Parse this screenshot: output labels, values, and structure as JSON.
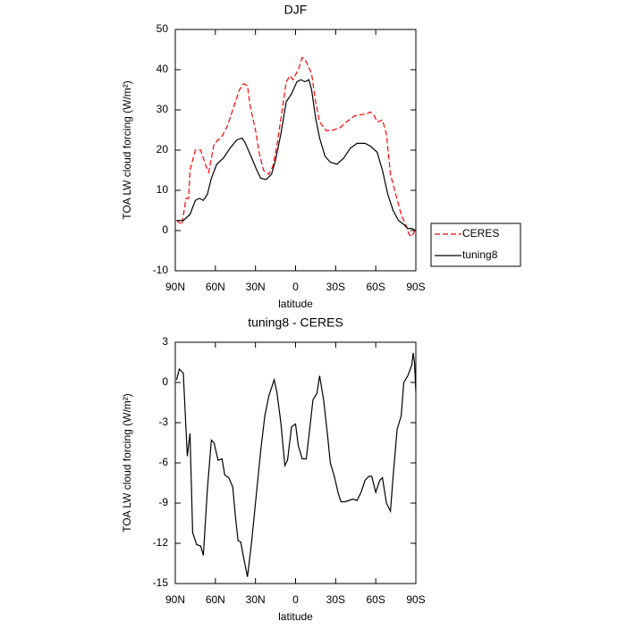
{
  "chart_data": [
    {
      "type": "line",
      "title": "DJF",
      "xlabel": "latitude",
      "ylabel": "TOA LW cloud forcing (W/m²)",
      "xlim": [
        90,
        -90
      ],
      "ylim": [
        -10,
        50
      ],
      "xticks": [
        {
          "value": 90,
          "label": "90N"
        },
        {
          "value": 60,
          "label": "60N"
        },
        {
          "value": 30,
          "label": "30N"
        },
        0,
        {
          "value": -30,
          "label": "30S"
        },
        {
          "value": -60,
          "label": "60S"
        },
        {
          "value": -90,
          "label": "90S"
        }
      ],
      "yticks": [
        -10,
        0,
        10,
        20,
        30,
        40,
        50
      ],
      "legend": "outside right",
      "series": [
        {
          "name": "CERES",
          "color": "#ff0000",
          "dash": "dashed",
          "x": [
            89,
            85,
            82,
            80,
            79,
            75,
            71,
            67,
            65,
            61,
            55,
            51,
            46,
            42,
            39,
            36,
            34,
            30,
            27,
            24,
            20,
            17,
            14,
            10,
            7,
            4,
            2,
            -2,
            -5,
            -8,
            -12,
            -15,
            -18,
            -23,
            -28,
            -33,
            -38,
            -44,
            -49,
            -53,
            -56,
            -59,
            -61,
            -65,
            -68,
            -71,
            -75,
            -79,
            -83,
            -85,
            -87,
            -90
          ],
          "values": [
            2.5,
            1.5,
            8,
            8,
            15,
            20,
            20,
            16,
            14.5,
            21.5,
            23.5,
            26,
            31,
            35,
            36.5,
            36,
            31,
            25,
            19,
            15,
            14,
            16,
            21,
            30,
            37,
            38.5,
            37.5,
            40,
            43,
            42,
            39,
            32,
            27,
            24.8,
            25,
            25.5,
            27,
            28.5,
            28.8,
            29,
            29.5,
            28.5,
            27,
            27.5,
            24,
            14,
            9,
            4,
            1,
            -1,
            -1.5,
            0.5
          ]
        },
        {
          "name": "tuning8",
          "color": "#000000",
          "dash": "solid",
          "x": [
            89,
            84,
            79,
            75,
            72,
            69,
            66,
            63,
            59,
            54,
            49,
            44,
            40,
            38,
            34,
            29,
            26,
            22,
            18,
            15,
            11,
            7,
            3,
            -1,
            -4,
            -7,
            -10,
            -12,
            -15,
            -18,
            -22,
            -26,
            -31,
            -36,
            -41,
            -46,
            -52,
            -56,
            -61,
            -65,
            -69,
            -73,
            -77,
            -81,
            -84,
            -87,
            -90
          ],
          "values": [
            2.5,
            2.5,
            4,
            7.5,
            8,
            7.5,
            9,
            13,
            16.5,
            18,
            20.5,
            22.5,
            23,
            22,
            19,
            15,
            13,
            12.7,
            14,
            17.5,
            24,
            32,
            34,
            37,
            37.5,
            37,
            37.5,
            35,
            28,
            23,
            18.5,
            17,
            16.5,
            18,
            20.5,
            21.7,
            21.7,
            21,
            19.5,
            15,
            9,
            5,
            2.5,
            1.5,
            0.5,
            0.5,
            0
          ]
        }
      ]
    },
    {
      "type": "line",
      "title": "tuning8 - CERES",
      "xlabel": "latitude",
      "ylabel": "TOA LW cloud forcing (W/m²)",
      "xlim": [
        90,
        -90
      ],
      "ylim": [
        -15,
        3
      ],
      "xticks": [
        {
          "value": 90,
          "label": "90N"
        },
        {
          "value": 60,
          "label": "60N"
        },
        {
          "value": 30,
          "label": "30N"
        },
        0,
        {
          "value": -30,
          "label": "30S"
        },
        {
          "value": -60,
          "label": "60S"
        },
        {
          "value": -90,
          "label": "90S"
        }
      ],
      "yticks": [
        -15,
        -12,
        -9,
        -6,
        -3,
        0,
        3
      ],
      "series": [
        {
          "color": "#000000",
          "dash": "solid",
          "x": [
            89,
            87,
            84,
            81,
            79,
            77,
            74,
            71,
            69,
            66,
            63,
            61,
            58,
            55,
            53,
            50,
            47,
            45,
            43,
            41,
            39,
            36,
            33,
            29,
            26,
            23,
            20,
            16,
            14,
            11,
            8,
            6,
            3,
            0,
            -2,
            -5,
            -8,
            -10,
            -13,
            -16,
            -18,
            -21,
            -24,
            -26,
            -29,
            -32,
            -34,
            -37,
            -40,
            -43,
            -46,
            -49,
            -52,
            -55,
            -57,
            -60,
            -63,
            -65,
            -68,
            -71,
            -73,
            -76,
            -79,
            -81,
            -84,
            -87,
            -88,
            -89,
            -90
          ],
          "values": [
            0.2,
            1,
            0.7,
            -5.5,
            -3.8,
            -11.2,
            -12.1,
            -12.2,
            -12.9,
            -8,
            -4.3,
            -4.5,
            -5.8,
            -5.7,
            -6.9,
            -7.1,
            -7.8,
            -10,
            -11.8,
            -11.9,
            -13,
            -14.5,
            -12,
            -8,
            -5,
            -2.5,
            -1,
            0.2,
            -0.7,
            -3,
            -6.2,
            -5.8,
            -3.3,
            -3.1,
            -4.7,
            -5.7,
            -5.7,
            -4,
            -1.3,
            -0.8,
            0.5,
            -1.3,
            -4,
            -6,
            -7,
            -8.3,
            -8.9,
            -8.9,
            -8.8,
            -8.7,
            -8.8,
            -8.2,
            -7.3,
            -7,
            -7,
            -8.2,
            -7.3,
            -7.1,
            -9,
            -9.6,
            -7,
            -3.5,
            -2.5,
            0,
            0.5,
            1.3,
            2.2,
            1.5,
            -0.7
          ]
        }
      ]
    }
  ]
}
